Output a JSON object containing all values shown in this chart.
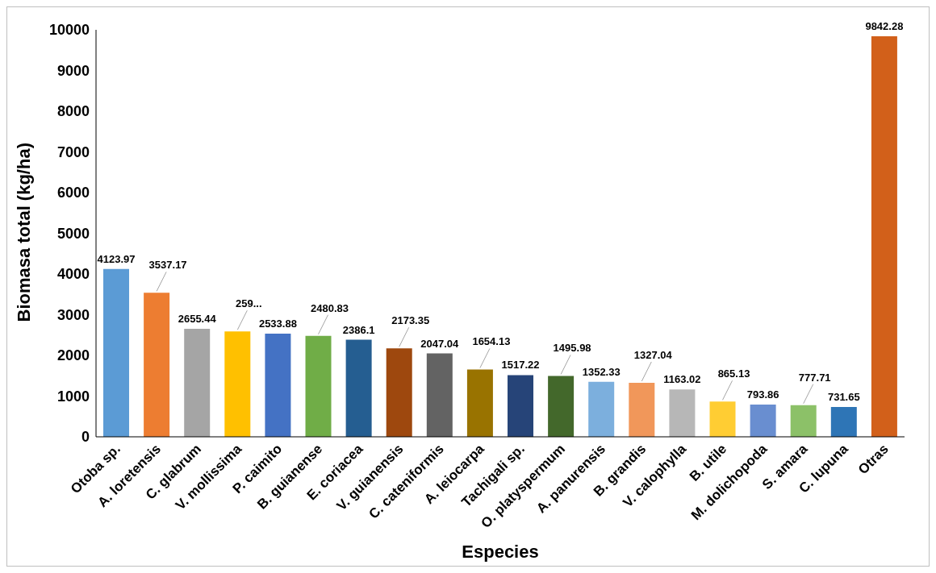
{
  "chart_data": {
    "type": "bar",
    "xlabel": "Especies",
    "ylabel": "Biomasa total (kg/ha)",
    "categories": [
      "Otoba sp.",
      "A. loretensis",
      "C. glabrum",
      "V. mollissima",
      "P. caimito",
      "B. guianense",
      "E. coriacea",
      "V. guianensis",
      "C. cateniformis",
      "A. leiocarpa",
      "Tachigali sp.",
      "O. platyspermum",
      "A. panurensis",
      "B. grandis",
      "V. calophylla",
      "B. utile",
      "M. dolichopoda",
      "S. amara",
      "C. lupuna",
      "Otras"
    ],
    "values": [
      4123.97,
      3537.17,
      2655.44,
      2590,
      2533.88,
      2480.83,
      2386.1,
      2173.35,
      2047.04,
      1654.13,
      1517.22,
      1495.98,
      1352.33,
      1327.04,
      1163.02,
      865.13,
      793.86,
      777.71,
      731.65,
      9842.28
    ],
    "value_labels": [
      "4123.97",
      "3537.17",
      "2655.44",
      "259...",
      "2533.88",
      "2480.83",
      "2386.1",
      "2173.35",
      "2047.04",
      "1654.13",
      "1517.22",
      "1495.98",
      "1352.33",
      "1327.04",
      "1163.02",
      "865.13",
      "793.86",
      "777.71",
      "731.65",
      "9842.28"
    ],
    "colors": [
      "#5b9bd5",
      "#ed7d31",
      "#a5a5a5",
      "#ffc000",
      "#4472c4",
      "#70ad47",
      "#255e91",
      "#9e480e",
      "#636363",
      "#997300",
      "#264478",
      "#43682b",
      "#7cafdd",
      "#f1975a",
      "#b7b7b7",
      "#ffcd33",
      "#698ed0",
      "#8cc168",
      "#2e75b6",
      "#d2601a"
    ],
    "ylim": [
      0,
      10000
    ],
    "yticks": [
      0,
      1000,
      2000,
      3000,
      4000,
      5000,
      6000,
      7000,
      8000,
      9000,
      10000
    ],
    "grid": false
  }
}
